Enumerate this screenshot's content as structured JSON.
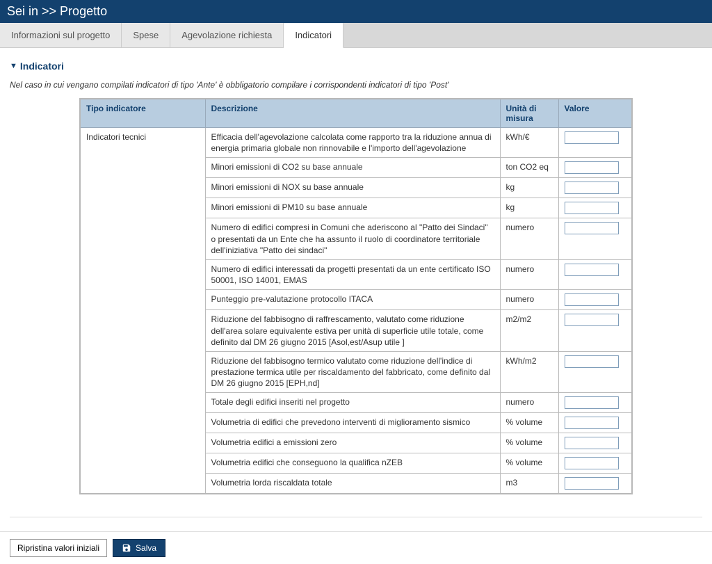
{
  "header": {
    "breadcrumb": "Sei in >> Progetto"
  },
  "tabs": [
    {
      "label": "Informazioni sul progetto",
      "active": false
    },
    {
      "label": "Spese",
      "active": false
    },
    {
      "label": "Agevolazione richiesta",
      "active": false
    },
    {
      "label": "Indicatori",
      "active": true
    }
  ],
  "section": {
    "title": "Indicatori",
    "note": "Nel caso in cui vengano compilati indicatori di tipo 'Ante' è obbligatorio compilare i corrispondenti indicatori di tipo 'Post'"
  },
  "table": {
    "headers": {
      "tipo": "Tipo indicatore",
      "descrizione": "Descrizione",
      "unita": "Unità di misura",
      "valore": "Valore"
    },
    "tipo_group": "Indicatori tecnici",
    "rows": [
      {
        "desc": "Efficacia dell'agevolazione calcolata come rapporto tra la riduzione annua di energia primaria globale non rinnovabile e l'importo dell'agevolazione",
        "unit": "kWh/€",
        "value": ""
      },
      {
        "desc": "Minori emissioni di CO2 su base annuale",
        "unit": "ton CO2 eq",
        "value": ""
      },
      {
        "desc": "Minori emissioni di NOX su base annuale",
        "unit": "kg",
        "value": ""
      },
      {
        "desc": "Minori emissioni di PM10 su base annuale",
        "unit": "kg",
        "value": ""
      },
      {
        "desc": "Numero di edifici compresi in Comuni che aderiscono al \"Patto dei Sindaci\" o presentati da un Ente che ha assunto il ruolo di coordinatore territoriale dell'iniziativa \"Patto dei sindaci\"",
        "unit": "numero",
        "value": ""
      },
      {
        "desc": "Numero di edifici interessati da progetti presentati da un ente certificato ISO 50001, ISO 14001, EMAS",
        "unit": "numero",
        "value": ""
      },
      {
        "desc": "Punteggio pre-valutazione protocollo ITACA",
        "unit": "numero",
        "value": ""
      },
      {
        "desc": "Riduzione del fabbisogno di raffrescamento, valutato come riduzione dell'area solare equivalente estiva per unità di superficie utile totale, come definito dal DM 26 giugno 2015 [Asol,est/Asup utile ]",
        "unit": "m2/m2",
        "value": ""
      },
      {
        "desc": "Riduzione del fabbisogno termico valutato come riduzione dell'indice di prestazione termica utile per riscaldamento del fabbricato, come definito dal DM 26 giugno 2015 [EPH,nd]",
        "unit": "kWh/m2",
        "value": ""
      },
      {
        "desc": "Totale degli edifici inseriti nel progetto",
        "unit": "numero",
        "value": ""
      },
      {
        "desc": "Volumetria di edifici che prevedono interventi di miglioramento sismico",
        "unit": "% volume",
        "value": ""
      },
      {
        "desc": "Volumetria edifici a emissioni zero",
        "unit": "% volume",
        "value": ""
      },
      {
        "desc": "Volumetria edifici che conseguono la qualifica nZEB",
        "unit": "% volume",
        "value": ""
      },
      {
        "desc": "Volumetria lorda riscaldata totale",
        "unit": "m3",
        "value": ""
      }
    ]
  },
  "footer": {
    "reset_label": "Ripristina valori iniziali",
    "save_label": "Salva"
  }
}
